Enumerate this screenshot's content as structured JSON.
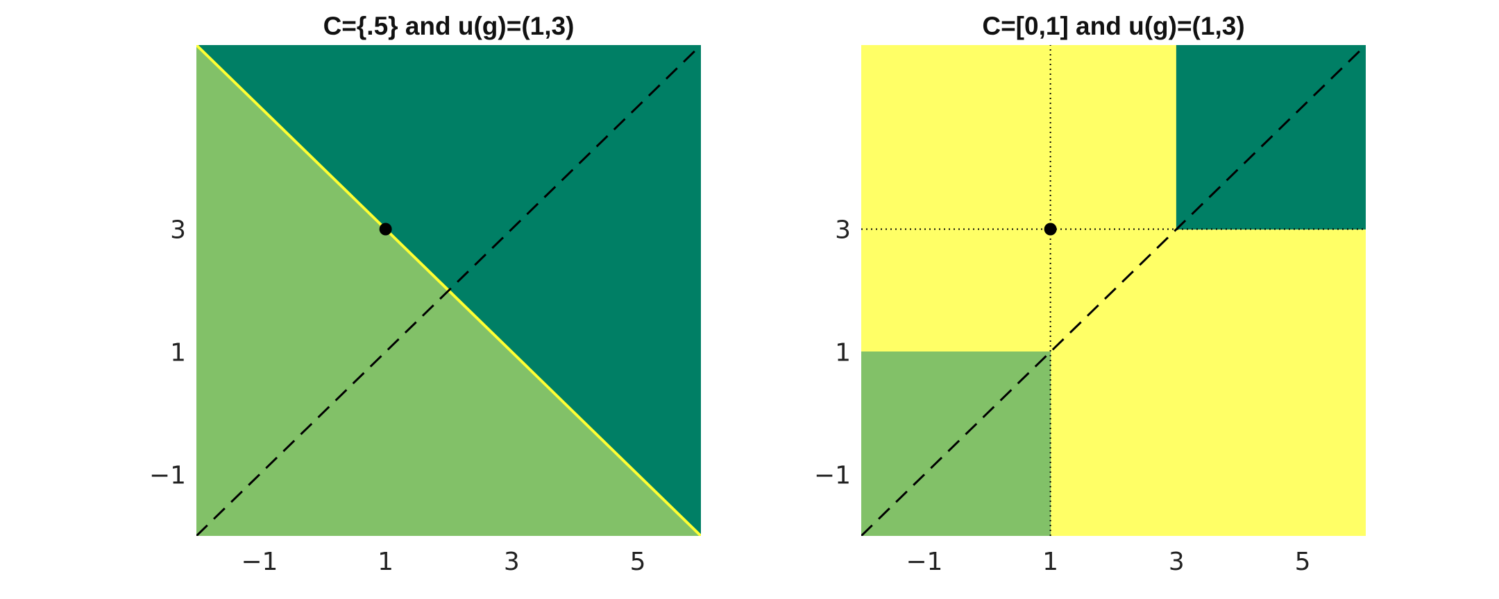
{
  "chart_data": [
    {
      "type": "region",
      "title": "C={.5} and u(g)=(1,3)",
      "xlabel": "",
      "ylabel": "",
      "xlim": [
        -2,
        6
      ],
      "ylim": [
        -2,
        6
      ],
      "xticks": [
        -1,
        1,
        3,
        5
      ],
      "xtick_labels": [
        "−1",
        "1",
        "3",
        "5"
      ],
      "yticks": [
        -1,
        1,
        3
      ],
      "ytick_labels": [
        "−1",
        "1",
        "3"
      ],
      "grid": false,
      "regions": [
        {
          "points": [
            [
              -2,
              6
            ],
            [
              6,
              6
            ],
            [
              6,
              -2
            ]
          ],
          "color": "#007f65"
        },
        {
          "points": [
            [
              -2,
              6
            ],
            [
              6,
              -2
            ],
            [
              -2,
              -2
            ]
          ],
          "color": "#82c168"
        }
      ],
      "lines": [
        {
          "points": [
            [
              -2,
              6
            ],
            [
              6,
              -2
            ]
          ],
          "color": "#ffff33",
          "style": "solid"
        },
        {
          "points": [
            [
              -2,
              -2
            ],
            [
              6,
              6
            ]
          ],
          "color": "#000000",
          "style": "dashed"
        }
      ],
      "points": [
        {
          "x": 1,
          "y": 3,
          "color": "#000000"
        }
      ]
    },
    {
      "type": "region",
      "title": "C=[0,1] and u(g)=(1,3)",
      "xlabel": "",
      "ylabel": "",
      "xlim": [
        -2,
        6
      ],
      "ylim": [
        -2,
        6
      ],
      "xticks": [
        -1,
        1,
        3,
        5
      ],
      "xtick_labels": [
        "−1",
        "1",
        "3",
        "5"
      ],
      "yticks": [
        -1,
        1,
        3
      ],
      "ytick_labels": [
        "−1",
        "1",
        "3"
      ],
      "grid": false,
      "regions": [
        {
          "points": [
            [
              -2,
              -2
            ],
            [
              6,
              -2
            ],
            [
              6,
              6
            ],
            [
              -2,
              6
            ]
          ],
          "color": "#ffff66"
        },
        {
          "points": [
            [
              3,
              3
            ],
            [
              6,
              3
            ],
            [
              6,
              6
            ],
            [
              3,
              6
            ]
          ],
          "color": "#007f65"
        },
        {
          "points": [
            [
              -2,
              -2
            ],
            [
              1,
              -2
            ],
            [
              1,
              1
            ],
            [
              -2,
              1
            ]
          ],
          "color": "#82c168"
        }
      ],
      "lines": [
        {
          "points": [
            [
              1,
              -2
            ],
            [
              1,
              6
            ]
          ],
          "color": "#000000",
          "style": "dotted"
        },
        {
          "points": [
            [
              -2,
              3
            ],
            [
              6,
              3
            ]
          ],
          "color": "#000000",
          "style": "dotted"
        },
        {
          "points": [
            [
              -2,
              -2
            ],
            [
              6,
              6
            ]
          ],
          "color": "#000000",
          "style": "dashed"
        }
      ],
      "points": [
        {
          "x": 1,
          "y": 3,
          "color": "#000000"
        }
      ]
    }
  ]
}
